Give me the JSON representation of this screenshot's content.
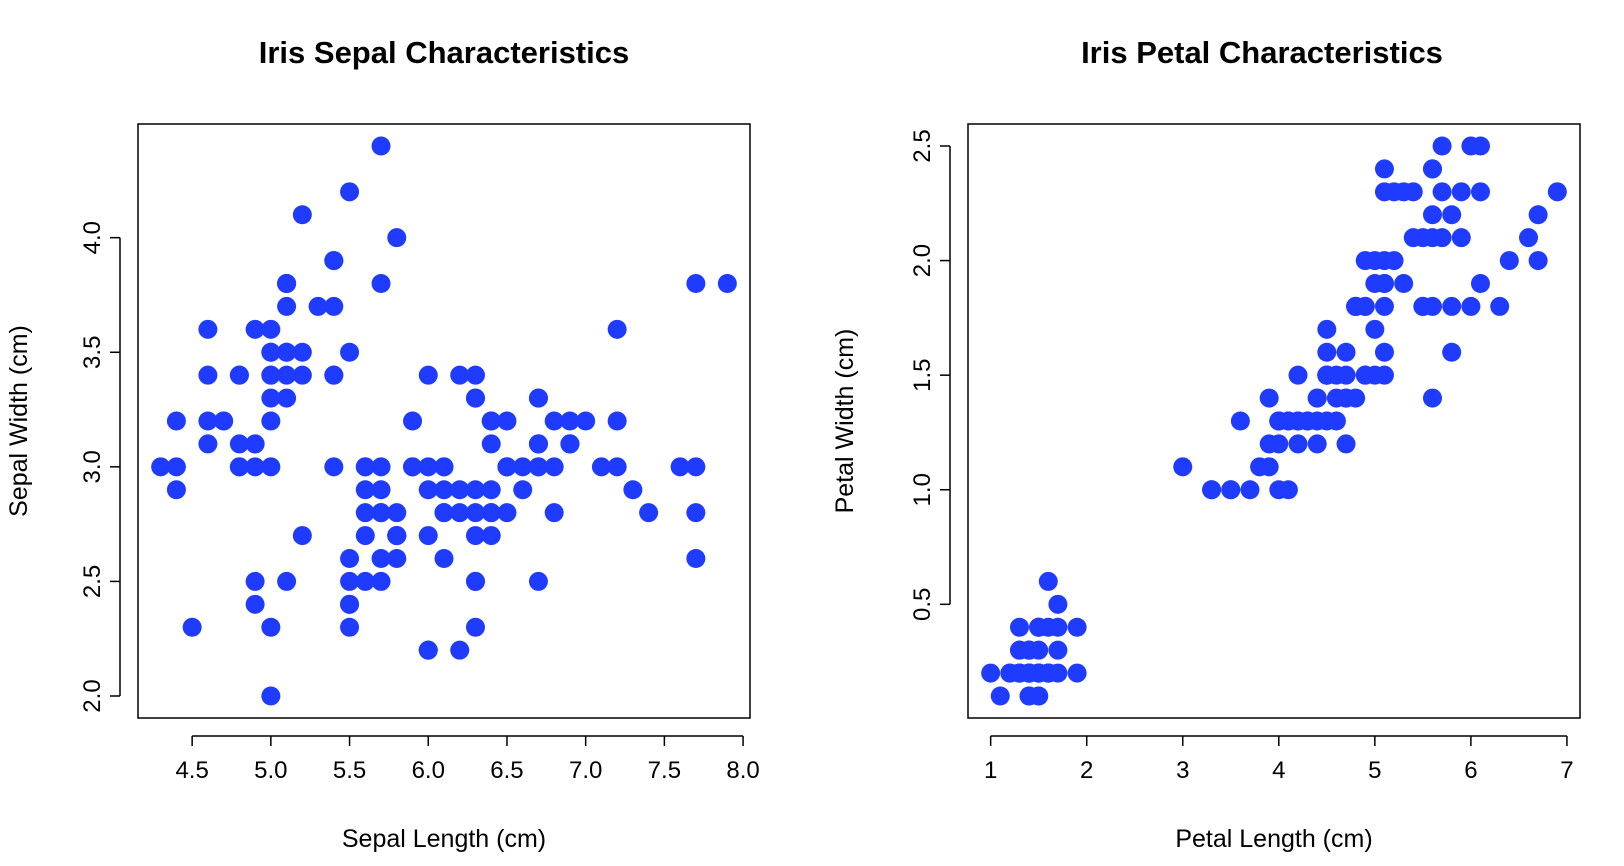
{
  "colors": {
    "points": "#1f3bff",
    "axis": "#000000",
    "background": "#ffffff"
  },
  "chart_data": [
    {
      "type": "scatter",
      "title": "Iris Sepal Characteristics",
      "xlabel": "Sepal Length (cm)",
      "ylabel": "Sepal Width (cm)",
      "xlim": [
        4.3,
        7.9
      ],
      "ylim": [
        2.0,
        4.4
      ],
      "xticks": [
        4.5,
        5.0,
        5.5,
        6.0,
        6.5,
        7.0,
        7.5,
        8.0
      ],
      "yticks": [
        2.0,
        2.5,
        3.0,
        3.5,
        4.0
      ],
      "xtick_labels": [
        "4.5",
        "5.0",
        "5.5",
        "6.0",
        "6.5",
        "7.0",
        "7.5",
        "8.0"
      ],
      "ytick_labels": [
        "2.0",
        "2.5",
        "3.0",
        "3.5",
        "4.0"
      ],
      "grid": false,
      "points": [
        [
          5.1,
          3.5
        ],
        [
          4.9,
          3.0
        ],
        [
          4.7,
          3.2
        ],
        [
          4.6,
          3.1
        ],
        [
          5.0,
          3.6
        ],
        [
          5.4,
          3.9
        ],
        [
          4.6,
          3.4
        ],
        [
          5.0,
          3.4
        ],
        [
          4.4,
          2.9
        ],
        [
          4.9,
          3.1
        ],
        [
          5.4,
          3.7
        ],
        [
          4.8,
          3.4
        ],
        [
          4.8,
          3.0
        ],
        [
          4.3,
          3.0
        ],
        [
          5.8,
          4.0
        ],
        [
          5.7,
          4.4
        ],
        [
          5.4,
          3.9
        ],
        [
          5.1,
          3.5
        ],
        [
          5.7,
          3.8
        ],
        [
          5.1,
          3.8
        ],
        [
          5.4,
          3.4
        ],
        [
          5.1,
          3.7
        ],
        [
          4.6,
          3.6
        ],
        [
          5.1,
          3.3
        ],
        [
          4.8,
          3.4
        ],
        [
          5.0,
          3.0
        ],
        [
          5.0,
          3.4
        ],
        [
          5.2,
          3.5
        ],
        [
          5.2,
          3.4
        ],
        [
          4.7,
          3.2
        ],
        [
          4.8,
          3.1
        ],
        [
          5.4,
          3.4
        ],
        [
          5.2,
          4.1
        ],
        [
          5.5,
          4.2
        ],
        [
          4.9,
          3.1
        ],
        [
          5.0,
          3.2
        ],
        [
          5.5,
          3.5
        ],
        [
          4.9,
          3.6
        ],
        [
          4.4,
          3.0
        ],
        [
          5.1,
          3.4
        ],
        [
          5.0,
          3.5
        ],
        [
          4.5,
          2.3
        ],
        [
          4.4,
          3.2
        ],
        [
          5.0,
          3.5
        ],
        [
          5.1,
          3.8
        ],
        [
          4.8,
          3.0
        ],
        [
          5.1,
          3.8
        ],
        [
          4.6,
          3.2
        ],
        [
          5.3,
          3.7
        ],
        [
          5.0,
          3.3
        ],
        [
          7.0,
          3.2
        ],
        [
          6.4,
          3.2
        ],
        [
          6.9,
          3.1
        ],
        [
          5.5,
          2.3
        ],
        [
          6.5,
          2.8
        ],
        [
          5.7,
          2.8
        ],
        [
          6.3,
          3.3
        ],
        [
          4.9,
          2.4
        ],
        [
          6.6,
          2.9
        ],
        [
          5.2,
          2.7
        ],
        [
          5.0,
          2.0
        ],
        [
          5.9,
          3.0
        ],
        [
          6.0,
          2.2
        ],
        [
          6.1,
          2.9
        ],
        [
          5.6,
          2.9
        ],
        [
          6.7,
          3.1
        ],
        [
          5.6,
          3.0
        ],
        [
          5.8,
          2.7
        ],
        [
          6.2,
          2.2
        ],
        [
          5.6,
          2.5
        ],
        [
          5.9,
          3.2
        ],
        [
          6.1,
          2.8
        ],
        [
          6.3,
          2.5
        ],
        [
          6.1,
          2.8
        ],
        [
          6.4,
          2.9
        ],
        [
          6.6,
          3.0
        ],
        [
          6.8,
          2.8
        ],
        [
          6.7,
          3.0
        ],
        [
          6.0,
          2.9
        ],
        [
          5.7,
          2.6
        ],
        [
          5.5,
          2.4
        ],
        [
          5.5,
          2.4
        ],
        [
          5.8,
          2.7
        ],
        [
          6.0,
          2.7
        ],
        [
          5.4,
          3.0
        ],
        [
          6.0,
          3.4
        ],
        [
          6.7,
          3.1
        ],
        [
          6.3,
          2.3
        ],
        [
          5.6,
          3.0
        ],
        [
          5.5,
          2.5
        ],
        [
          5.5,
          2.6
        ],
        [
          6.1,
          3.0
        ],
        [
          5.8,
          2.6
        ],
        [
          5.0,
          2.3
        ],
        [
          5.6,
          2.7
        ],
        [
          5.7,
          3.0
        ],
        [
          5.7,
          2.9
        ],
        [
          6.2,
          2.9
        ],
        [
          5.1,
          2.5
        ],
        [
          5.7,
          2.8
        ],
        [
          6.3,
          3.3
        ],
        [
          5.8,
          2.7
        ],
        [
          7.1,
          3.0
        ],
        [
          6.3,
          2.9
        ],
        [
          6.5,
          3.0
        ],
        [
          7.6,
          3.0
        ],
        [
          4.9,
          2.5
        ],
        [
          7.3,
          2.9
        ],
        [
          6.7,
          2.5
        ],
        [
          7.2,
          3.6
        ],
        [
          6.5,
          3.2
        ],
        [
          6.4,
          2.7
        ],
        [
          6.8,
          3.0
        ],
        [
          5.7,
          2.5
        ],
        [
          5.8,
          2.8
        ],
        [
          6.4,
          3.2
        ],
        [
          6.5,
          3.0
        ],
        [
          7.7,
          3.8
        ],
        [
          7.7,
          2.6
        ],
        [
          6.0,
          2.2
        ],
        [
          6.9,
          3.2
        ],
        [
          5.6,
          2.8
        ],
        [
          7.7,
          2.8
        ],
        [
          6.3,
          2.7
        ],
        [
          6.7,
          3.3
        ],
        [
          7.2,
          3.2
        ],
        [
          6.2,
          2.8
        ],
        [
          6.1,
          3.0
        ],
        [
          6.4,
          2.8
        ],
        [
          7.2,
          3.0
        ],
        [
          7.4,
          2.8
        ],
        [
          7.9,
          3.8
        ],
        [
          6.4,
          2.8
        ],
        [
          6.3,
          2.8
        ],
        [
          6.1,
          2.6
        ],
        [
          7.7,
          3.0
        ],
        [
          6.3,
          3.4
        ],
        [
          6.4,
          3.1
        ],
        [
          6.0,
          3.0
        ],
        [
          6.9,
          3.1
        ],
        [
          6.7,
          3.1
        ],
        [
          6.9,
          3.1
        ],
        [
          5.8,
          2.7
        ],
        [
          6.8,
          3.2
        ],
        [
          6.7,
          3.3
        ],
        [
          6.7,
          3.0
        ],
        [
          6.3,
          2.5
        ],
        [
          6.5,
          3.0
        ],
        [
          6.2,
          3.4
        ],
        [
          5.9,
          3.0
        ]
      ]
    },
    {
      "type": "scatter",
      "title": "Iris Petal Characteristics",
      "xlabel": "Petal Length (cm)",
      "ylabel": "Petal Width (cm)",
      "xlim": [
        1.0,
        6.9
      ],
      "ylim": [
        0.1,
        2.5
      ],
      "xticks": [
        1,
        2,
        3,
        4,
        5,
        6,
        7
      ],
      "yticks": [
        0.5,
        1.0,
        1.5,
        2.0,
        2.5
      ],
      "xtick_labels": [
        "1",
        "2",
        "3",
        "4",
        "5",
        "6",
        "7"
      ],
      "ytick_labels": [
        "0.5",
        "1.0",
        "1.5",
        "2.0",
        "2.5"
      ],
      "grid": false,
      "points": [
        [
          1.4,
          0.2
        ],
        [
          1.4,
          0.2
        ],
        [
          1.3,
          0.2
        ],
        [
          1.5,
          0.2
        ],
        [
          1.4,
          0.2
        ],
        [
          1.7,
          0.4
        ],
        [
          1.4,
          0.3
        ],
        [
          1.5,
          0.2
        ],
        [
          1.4,
          0.2
        ],
        [
          1.5,
          0.1
        ],
        [
          1.5,
          0.2
        ],
        [
          1.6,
          0.2
        ],
        [
          1.4,
          0.1
        ],
        [
          1.1,
          0.1
        ],
        [
          1.2,
          0.2
        ],
        [
          1.5,
          0.4
        ],
        [
          1.3,
          0.4
        ],
        [
          1.4,
          0.3
        ],
        [
          1.7,
          0.3
        ],
        [
          1.5,
          0.3
        ],
        [
          1.7,
          0.2
        ],
        [
          1.5,
          0.4
        ],
        [
          1.0,
          0.2
        ],
        [
          1.7,
          0.5
        ],
        [
          1.9,
          0.2
        ],
        [
          1.6,
          0.2
        ],
        [
          1.6,
          0.4
        ],
        [
          1.5,
          0.2
        ],
        [
          1.4,
          0.2
        ],
        [
          1.6,
          0.2
        ],
        [
          1.6,
          0.2
        ],
        [
          1.5,
          0.4
        ],
        [
          1.5,
          0.1
        ],
        [
          1.4,
          0.2
        ],
        [
          1.5,
          0.2
        ],
        [
          1.2,
          0.2
        ],
        [
          1.3,
          0.2
        ],
        [
          1.4,
          0.1
        ],
        [
          1.3,
          0.2
        ],
        [
          1.5,
          0.2
        ],
        [
          1.3,
          0.3
        ],
        [
          1.3,
          0.3
        ],
        [
          1.3,
          0.2
        ],
        [
          1.6,
          0.6
        ],
        [
          1.9,
          0.4
        ],
        [
          1.4,
          0.3
        ],
        [
          1.6,
          0.2
        ],
        [
          1.4,
          0.2
        ],
        [
          1.5,
          0.2
        ],
        [
          1.4,
          0.2
        ],
        [
          4.7,
          1.4
        ],
        [
          4.5,
          1.5
        ],
        [
          4.9,
          1.5
        ],
        [
          4.0,
          1.3
        ],
        [
          4.6,
          1.5
        ],
        [
          4.5,
          1.3
        ],
        [
          4.7,
          1.6
        ],
        [
          3.3,
          1.0
        ],
        [
          4.6,
          1.3
        ],
        [
          3.9,
          1.4
        ],
        [
          3.5,
          1.0
        ],
        [
          4.2,
          1.5
        ],
        [
          4.0,
          1.0
        ],
        [
          4.7,
          1.4
        ],
        [
          3.6,
          1.3
        ],
        [
          4.4,
          1.4
        ],
        [
          4.5,
          1.5
        ],
        [
          4.1,
          1.0
        ],
        [
          4.5,
          1.5
        ],
        [
          3.9,
          1.1
        ],
        [
          4.8,
          1.8
        ],
        [
          4.0,
          1.3
        ],
        [
          4.9,
          1.5
        ],
        [
          4.7,
          1.2
        ],
        [
          4.3,
          1.3
        ],
        [
          4.4,
          1.4
        ],
        [
          4.8,
          1.4
        ],
        [
          5.0,
          1.7
        ],
        [
          4.5,
          1.5
        ],
        [
          3.5,
          1.0
        ],
        [
          3.8,
          1.1
        ],
        [
          3.7,
          1.0
        ],
        [
          3.9,
          1.2
        ],
        [
          5.1,
          1.6
        ],
        [
          4.5,
          1.5
        ],
        [
          4.5,
          1.6
        ],
        [
          4.7,
          1.5
        ],
        [
          4.4,
          1.3
        ],
        [
          4.1,
          1.3
        ],
        [
          4.0,
          1.3
        ],
        [
          4.4,
          1.2
        ],
        [
          4.6,
          1.4
        ],
        [
          4.0,
          1.2
        ],
        [
          3.3,
          1.0
        ],
        [
          4.2,
          1.3
        ],
        [
          4.2,
          1.2
        ],
        [
          4.2,
          1.3
        ],
        [
          4.3,
          1.3
        ],
        [
          3.0,
          1.1
        ],
        [
          4.1,
          1.3
        ],
        [
          6.0,
          2.5
        ],
        [
          5.1,
          1.9
        ],
        [
          5.9,
          2.1
        ],
        [
          5.6,
          1.8
        ],
        [
          5.8,
          2.2
        ],
        [
          6.6,
          2.1
        ],
        [
          4.5,
          1.7
        ],
        [
          6.3,
          1.8
        ],
        [
          5.8,
          1.8
        ],
        [
          6.1,
          2.5
        ],
        [
          5.1,
          2.0
        ],
        [
          5.3,
          1.9
        ],
        [
          5.5,
          2.1
        ],
        [
          5.0,
          2.0
        ],
        [
          5.1,
          2.4
        ],
        [
          5.3,
          2.3
        ],
        [
          5.5,
          1.8
        ],
        [
          6.7,
          2.2
        ],
        [
          6.9,
          2.3
        ],
        [
          5.0,
          1.5
        ],
        [
          5.7,
          2.3
        ],
        [
          4.9,
          2.0
        ],
        [
          6.7,
          2.0
        ],
        [
          4.9,
          1.8
        ],
        [
          5.7,
          2.1
        ],
        [
          6.0,
          1.8
        ],
        [
          4.8,
          1.8
        ],
        [
          4.9,
          1.8
        ],
        [
          5.6,
          2.1
        ],
        [
          5.8,
          1.6
        ],
        [
          6.1,
          1.9
        ],
        [
          6.4,
          2.0
        ],
        [
          5.6,
          2.2
        ],
        [
          5.1,
          1.5
        ],
        [
          5.6,
          1.4
        ],
        [
          6.1,
          2.3
        ],
        [
          5.6,
          2.4
        ],
        [
          5.5,
          1.8
        ],
        [
          4.8,
          1.8
        ],
        [
          5.4,
          2.1
        ],
        [
          5.6,
          2.4
        ],
        [
          5.1,
          2.3
        ],
        [
          5.1,
          1.9
        ],
        [
          5.9,
          2.3
        ],
        [
          5.7,
          2.5
        ],
        [
          5.2,
          2.3
        ],
        [
          5.0,
          1.9
        ],
        [
          5.2,
          2.0
        ],
        [
          5.4,
          2.3
        ],
        [
          5.1,
          1.8
        ]
      ]
    }
  ]
}
